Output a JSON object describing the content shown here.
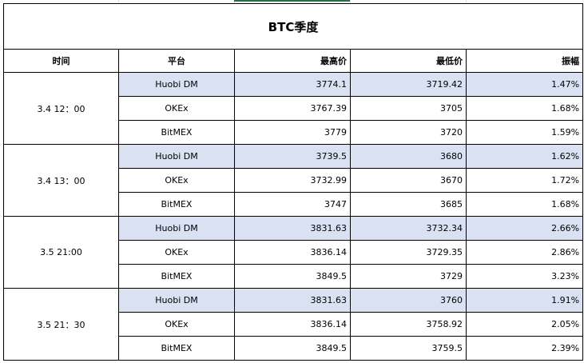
{
  "title": "BTC季度",
  "headers": [
    "时间",
    "平台",
    "最高价",
    "最低价",
    "振幅"
  ],
  "groups": [
    {
      "time": "3.4 12：00",
      "rows": [
        {
          "platform": "Huobi DM",
          "high": "3774.1",
          "low": "3719.42",
          "amp": "1.47%"
        },
        {
          "platform": "OKEx",
          "high": "3767.39",
          "low": "3705",
          "amp": "1.68%"
        },
        {
          "platform": "BitMEX",
          "high": "3779",
          "low": "3720",
          "amp": "1.59%"
        }
      ]
    },
    {
      "time": "3.4 13：00",
      "rows": [
        {
          "platform": "Huobi DM",
          "high": "3739.5",
          "low": "3680",
          "amp": "1.62%"
        },
        {
          "platform": "OKEx",
          "high": "3732.99",
          "low": "3670",
          "amp": "1.72%"
        },
        {
          "platform": "BitMEX",
          "high": "3747",
          "low": "3685",
          "amp": "1.68%"
        }
      ]
    },
    {
      "time": "3.5 21:00",
      "rows": [
        {
          "platform": "Huobi DM",
          "high": "3831.63",
          "low": "3732.34",
          "amp": "2.66%"
        },
        {
          "platform": "OKEx",
          "high": "3836.14",
          "low": "3729.35",
          "amp": "2.86%"
        },
        {
          "platform": "BitMEX",
          "high": "3849.5",
          "low": "3729",
          "amp": "3.23%"
        }
      ]
    },
    {
      "time": "3.5 21：30",
      "rows": [
        {
          "platform": "Huobi DM",
          "high": "3831.63",
          "low": "3760",
          "amp": "1.91%"
        },
        {
          "platform": "OKEx",
          "high": "3836.14",
          "low": "3758.92",
          "amp": "2.05%"
        },
        {
          "platform": "BitMEX",
          "high": "3849.5",
          "low": "3759.5",
          "amp": "2.39%"
        }
      ]
    }
  ],
  "colors": {
    "highlight_row": "#d9e1f2",
    "selection_accent": "#217346"
  }
}
